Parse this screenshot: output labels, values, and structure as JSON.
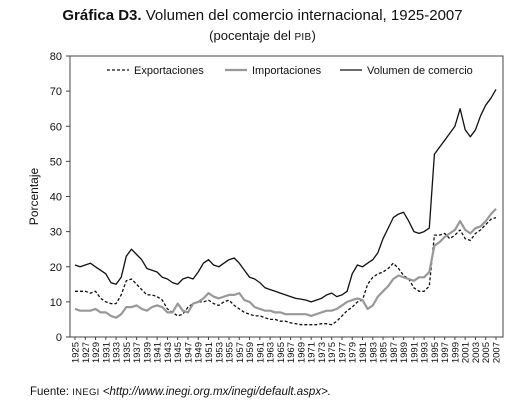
{
  "header": {
    "title_bold": "Gráfica D3.",
    "title_rest": " Volumen del comercio internacional, 1925-2007",
    "subtitle_pre": "(pocentaje del ",
    "subtitle_sc": "PIB",
    "subtitle_post": ")"
  },
  "footer": {
    "source_pre": "Fuente: ",
    "source_org": "INEGI",
    "source_url": " <http://www.inegi.org.mx/inegi/default.aspx>."
  },
  "chart_data": {
    "type": "line",
    "title": "Volumen del comercio internacional, 1925-2007",
    "subtitle": "(pocentaje del PIB)",
    "xlabel": "",
    "ylabel": "Porcentaje",
    "ylim": [
      0,
      80
    ],
    "yticks": [
      "0",
      "10",
      "20",
      "30",
      "40",
      "50",
      "60",
      "70",
      "80"
    ],
    "xtick_labels": [
      "1925",
      "1927",
      "1929",
      "1931",
      "1933",
      "1935",
      "1937",
      "1939",
      "1941",
      "1943",
      "1945",
      "1947",
      "1949",
      "1951",
      "1953",
      "1955",
      "1957",
      "1959",
      "1961",
      "1963",
      "1965",
      "1967",
      "1969",
      "1971",
      "1973",
      "1975",
      "1977",
      "1979",
      "1981",
      "1983",
      "1985",
      "1987",
      "1989",
      "1991",
      "1993",
      "1995",
      "1997",
      "1999",
      "2001",
      "2003",
      "2005",
      "2007"
    ],
    "legend_position": "top",
    "grid": false,
    "x": [
      1925,
      1926,
      1927,
      1928,
      1929,
      1930,
      1931,
      1932,
      1933,
      1934,
      1935,
      1936,
      1937,
      1938,
      1939,
      1940,
      1941,
      1942,
      1943,
      1944,
      1945,
      1946,
      1947,
      1948,
      1949,
      1950,
      1951,
      1952,
      1953,
      1954,
      1955,
      1956,
      1957,
      1958,
      1959,
      1960,
      1961,
      1962,
      1963,
      1964,
      1965,
      1966,
      1967,
      1968,
      1969,
      1970,
      1971,
      1972,
      1973,
      1974,
      1975,
      1976,
      1977,
      1978,
      1979,
      1980,
      1981,
      1982,
      1983,
      1984,
      1985,
      1986,
      1987,
      1988,
      1989,
      1990,
      1991,
      1992,
      1993,
      1994,
      1995,
      1996,
      1997,
      1998,
      1999,
      2000,
      2001,
      2002,
      2003,
      2004,
      2005,
      2006,
      2007
    ],
    "series": [
      {
        "name": "Exportaciones",
        "style": "dashed",
        "color": "#111111",
        "values": [
          13,
          13,
          13,
          12.5,
          13,
          11,
          10,
          9.5,
          9.5,
          12,
          16,
          16.5,
          15,
          13.5,
          12,
          12,
          11.5,
          10.5,
          8,
          7,
          6,
          6.5,
          8.5,
          9.5,
          10,
          10,
          10.5,
          9.5,
          9,
          10,
          10.5,
          9,
          8,
          7,
          6.5,
          6,
          6,
          5.5,
          5,
          5,
          4.5,
          4.5,
          4,
          3.8,
          3.5,
          3.5,
          3.5,
          3.5,
          3.8,
          3.8,
          3.5,
          4.5,
          6,
          7.5,
          8.5,
          10,
          10.5,
          15,
          17,
          18,
          18.5,
          19.5,
          21,
          19.5,
          17.5,
          16.5,
          14,
          13,
          13,
          14.5,
          29,
          29,
          29.5,
          28,
          29,
          30.5,
          28,
          27.5,
          29.5,
          30.5,
          32,
          33.5,
          34
        ]
      },
      {
        "name": "Importaciones",
        "style": "solid",
        "color": "#999999",
        "values": [
          8,
          7.5,
          7.5,
          7.5,
          8,
          7,
          7,
          6,
          5.5,
          6.5,
          8.5,
          8.5,
          9,
          8,
          7.5,
          8.5,
          9,
          8.5,
          7,
          7,
          9.5,
          7.5,
          7,
          9.5,
          10,
          11,
          12.5,
          11.5,
          11,
          11.5,
          12,
          12,
          12.5,
          10.5,
          10,
          8.5,
          8,
          7.5,
          7.5,
          7,
          7,
          6.5,
          6.5,
          6.5,
          6.5,
          6.5,
          6,
          6.5,
          7,
          7.5,
          7.5,
          8,
          9,
          10,
          10.5,
          11,
          10.5,
          8,
          9,
          11.5,
          13,
          14.5,
          16.5,
          17.5,
          17,
          16.5,
          16,
          17,
          17,
          18.5,
          26,
          27,
          28.5,
          29.5,
          30.5,
          33,
          30.5,
          29.5,
          31,
          31.5,
          33,
          35,
          36.5
        ]
      },
      {
        "name": "Volumen de comercio",
        "style": "solid",
        "color": "#111111",
        "values": [
          20.5,
          20,
          20.5,
          21,
          20,
          19,
          18,
          15.5,
          15,
          17,
          23,
          25,
          23.5,
          22,
          19.5,
          19,
          18.5,
          17,
          16.5,
          15.5,
          15,
          16.5,
          17,
          16.5,
          18.5,
          21,
          22,
          20.5,
          20,
          21,
          22,
          22.5,
          21,
          19,
          17,
          16.5,
          15.5,
          14,
          13.5,
          13,
          12.5,
          12,
          11.5,
          11,
          10.8,
          10.5,
          10,
          10.5,
          11,
          12,
          12.5,
          11.5,
          12,
          13,
          18,
          20.5,
          20,
          21,
          22,
          24,
          28,
          31,
          34,
          35,
          35.5,
          33,
          30,
          29.5,
          30,
          31,
          52,
          54,
          56,
          58,
          60,
          65,
          59,
          57,
          59,
          63,
          66,
          68,
          70.5
        ]
      }
    ]
  }
}
